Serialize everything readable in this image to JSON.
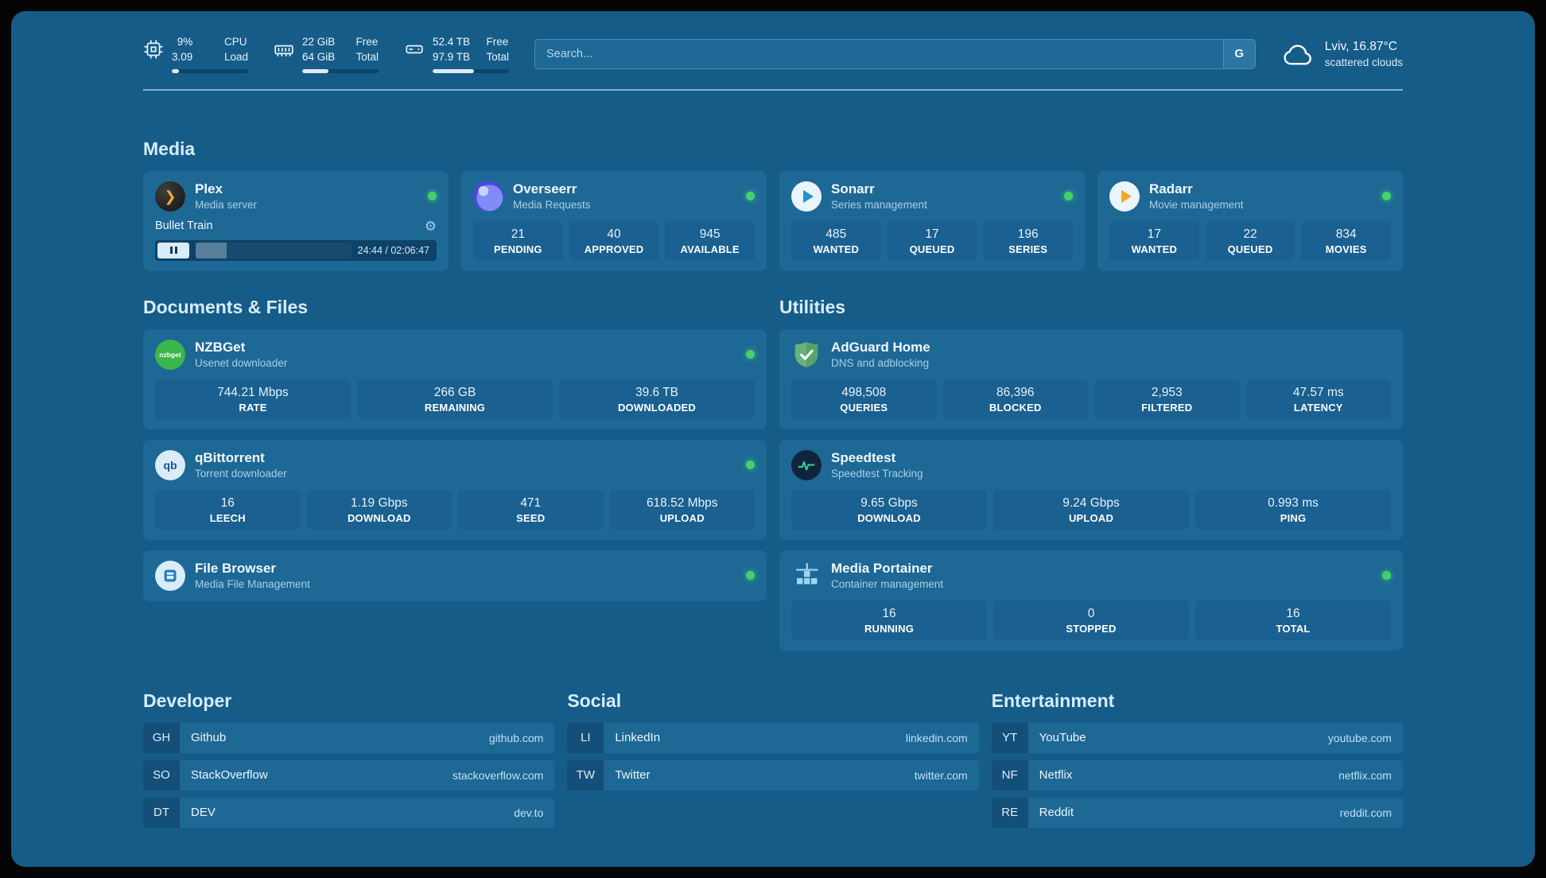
{
  "header": {
    "cpu": {
      "value_top": "9%",
      "value_bottom": "3.09",
      "label_top": "CPU",
      "label_bottom": "Load",
      "percent": 9
    },
    "ram": {
      "value_top": "22 GiB",
      "value_bottom": "64 GiB",
      "label_top": "Free",
      "label_bottom": "Total",
      "percent": 34
    },
    "disk": {
      "value_top": "52.4 TB",
      "value_bottom": "97.9 TB",
      "label_top": "Free",
      "label_bottom": "Total",
      "percent": 54
    },
    "search": {
      "placeholder": "Search...",
      "engine_label": "G"
    },
    "weather": {
      "location": "Lviv, 16.87°C",
      "condition": "scattered clouds"
    }
  },
  "icons": {
    "plex_glyph": "❯",
    "gear": "⚙"
  },
  "media": {
    "title": "Media",
    "plex": {
      "name": "Plex",
      "subtitle": "Media server",
      "now_playing": "Bullet Train",
      "time": "24:44 / 02:06:47",
      "progress_percent": 20
    },
    "overseerr": {
      "name": "Overseerr",
      "subtitle": "Media Requests",
      "stats": [
        {
          "value": "21",
          "label": "PENDING"
        },
        {
          "value": "40",
          "label": "APPROVED"
        },
        {
          "value": "945",
          "label": "AVAILABLE"
        }
      ]
    },
    "sonarr": {
      "name": "Sonarr",
      "subtitle": "Series management",
      "stats": [
        {
          "value": "485",
          "label": "WANTED"
        },
        {
          "value": "17",
          "label": "QUEUED"
        },
        {
          "value": "196",
          "label": "SERIES"
        }
      ]
    },
    "radarr": {
      "name": "Radarr",
      "subtitle": "Movie management",
      "stats": [
        {
          "value": "17",
          "label": "WANTED"
        },
        {
          "value": "22",
          "label": "QUEUED"
        },
        {
          "value": "834",
          "label": "MOVIES"
        }
      ]
    }
  },
  "documents": {
    "title": "Documents & Files",
    "nzbget": {
      "name": "NZBGet",
      "subtitle": "Usenet downloader",
      "icon_text": "nzbget",
      "stats": [
        {
          "value": "744.21 Mbps",
          "label": "RATE"
        },
        {
          "value": "266 GB",
          "label": "REMAINING"
        },
        {
          "value": "39.6 TB",
          "label": "DOWNLOADED"
        }
      ]
    },
    "qbittorrent": {
      "name": "qBittorrent",
      "subtitle": "Torrent downloader",
      "icon_text": "qb",
      "stats": [
        {
          "value": "16",
          "label": "LEECH"
        },
        {
          "value": "1.19 Gbps",
          "label": "DOWNLOAD"
        },
        {
          "value": "471",
          "label": "SEED"
        },
        {
          "value": "618.52 Mbps",
          "label": "UPLOAD"
        }
      ]
    },
    "filebrowser": {
      "name": "File Browser",
      "subtitle": "Media File Management"
    }
  },
  "utilities": {
    "title": "Utilities",
    "adguard": {
      "name": "AdGuard Home",
      "subtitle": "DNS and adblocking",
      "stats": [
        {
          "value": "498,508",
          "label": "QUERIES"
        },
        {
          "value": "86,396",
          "label": "BLOCKED"
        },
        {
          "value": "2,953",
          "label": "FILTERED"
        },
        {
          "value": "47.57 ms",
          "label": "LATENCY"
        }
      ]
    },
    "speedtest": {
      "name": "Speedtest",
      "subtitle": "Speedtest Tracking",
      "stats": [
        {
          "value": "9.65 Gbps",
          "label": "DOWNLOAD"
        },
        {
          "value": "9.24 Gbps",
          "label": "UPLOAD"
        },
        {
          "value": "0.993 ms",
          "label": "PING"
        }
      ]
    },
    "portainer": {
      "name": "Media Portainer",
      "subtitle": "Container management",
      "stats": [
        {
          "value": "16",
          "label": "RUNNING"
        },
        {
          "value": "0",
          "label": "STOPPED"
        },
        {
          "value": "16",
          "label": "TOTAL"
        }
      ]
    }
  },
  "bookmarks": {
    "developer": {
      "title": "Developer",
      "items": [
        {
          "abbr": "GH",
          "name": "Github",
          "url": "github.com"
        },
        {
          "abbr": "SO",
          "name": "StackOverflow",
          "url": "stackoverflow.com"
        },
        {
          "abbr": "DT",
          "name": "DEV",
          "url": "dev.to"
        }
      ]
    },
    "social": {
      "title": "Social",
      "items": [
        {
          "abbr": "LI",
          "name": "LinkedIn",
          "url": "linkedin.com"
        },
        {
          "abbr": "TW",
          "name": "Twitter",
          "url": "twitter.com"
        }
      ]
    },
    "entertainment": {
      "title": "Entertainment",
      "items": [
        {
          "abbr": "YT",
          "name": "YouTube",
          "url": "youtube.com"
        },
        {
          "abbr": "NF",
          "name": "Netflix",
          "url": "netflix.com"
        },
        {
          "abbr": "RE",
          "name": "Reddit",
          "url": "reddit.com"
        }
      ]
    }
  },
  "colors": {
    "status_online": "#43d16b",
    "background": "#165c88",
    "card": "#1e6896"
  }
}
